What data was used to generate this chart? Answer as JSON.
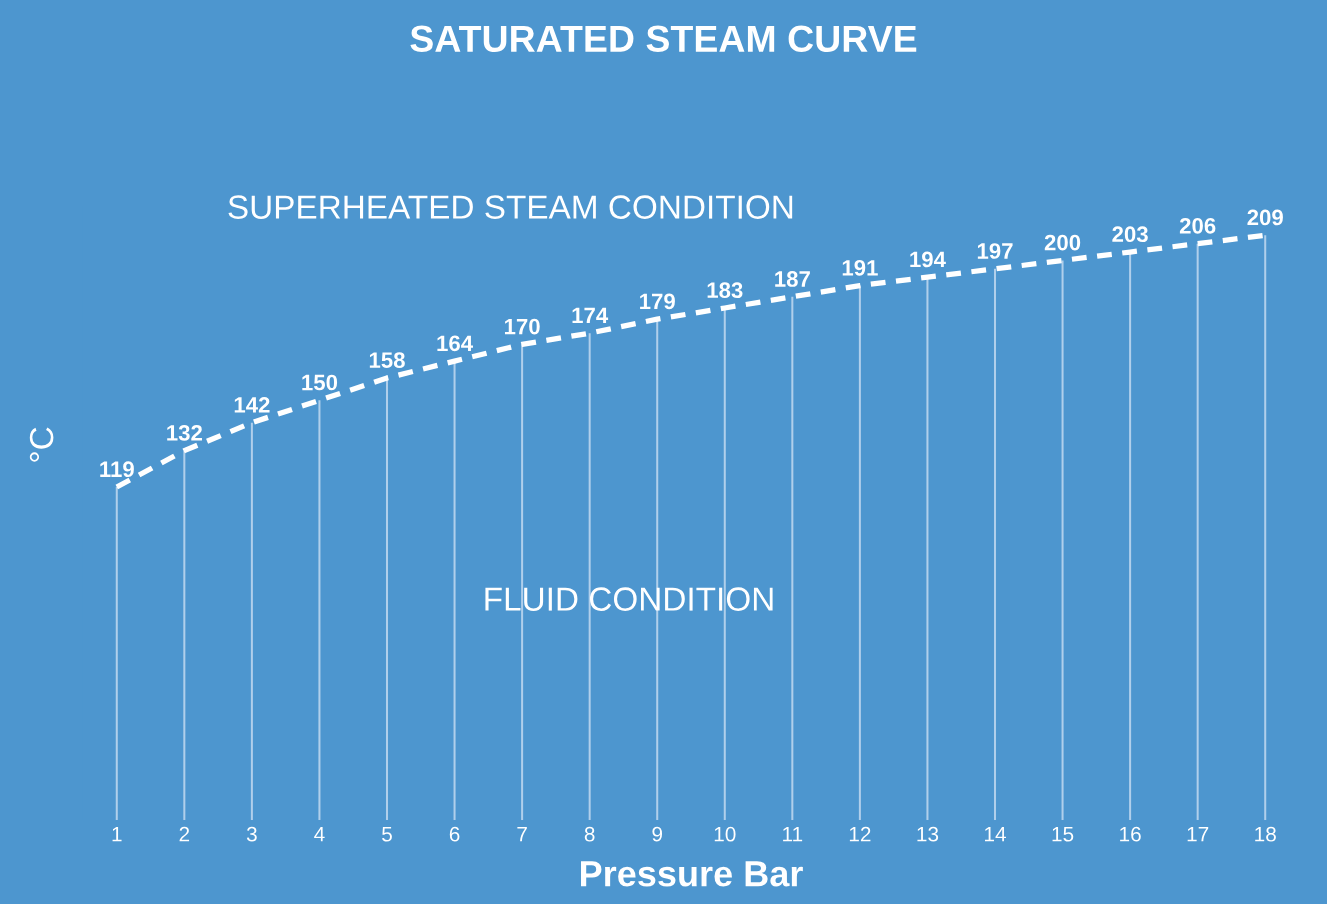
{
  "chart_data": {
    "type": "line",
    "title": "SATURATED STEAM CURVE",
    "xlabel": "Pressure Bar",
    "ylabel": "°C",
    "categories": [
      "1",
      "2",
      "3",
      "4",
      "5",
      "6",
      "7",
      "8",
      "9",
      "10",
      "11",
      "12",
      "13",
      "14",
      "15",
      "16",
      "17",
      "18"
    ],
    "series": [
      {
        "color": "#ffffff",
        "line_style": "dashed",
        "values": [
          119,
          132,
          142,
          150,
          158,
          164,
          170,
          174,
          179,
          183,
          187,
          191,
          194,
          197,
          200,
          203,
          206,
          209
        ],
        "value_labels": [
          "119",
          "132",
          "142",
          "150",
          "158",
          "164",
          "170",
          "174",
          "179",
          "183",
          "187",
          "191",
          "194",
          "197",
          "200",
          "203",
          "206",
          "209"
        ]
      },
      {
        "type": "bar",
        "color": "#b0cfeb",
        "values": [
          119,
          132,
          142,
          150,
          158,
          164,
          170,
          174,
          179,
          183,
          187,
          191,
          194,
          197,
          200,
          203,
          206,
          209
        ]
      }
    ],
    "tick_labels": "x",
    "annotations": [
      "SUPERHEATED STEAM CONDITION",
      "FLUID CONDITION"
    ]
  }
}
